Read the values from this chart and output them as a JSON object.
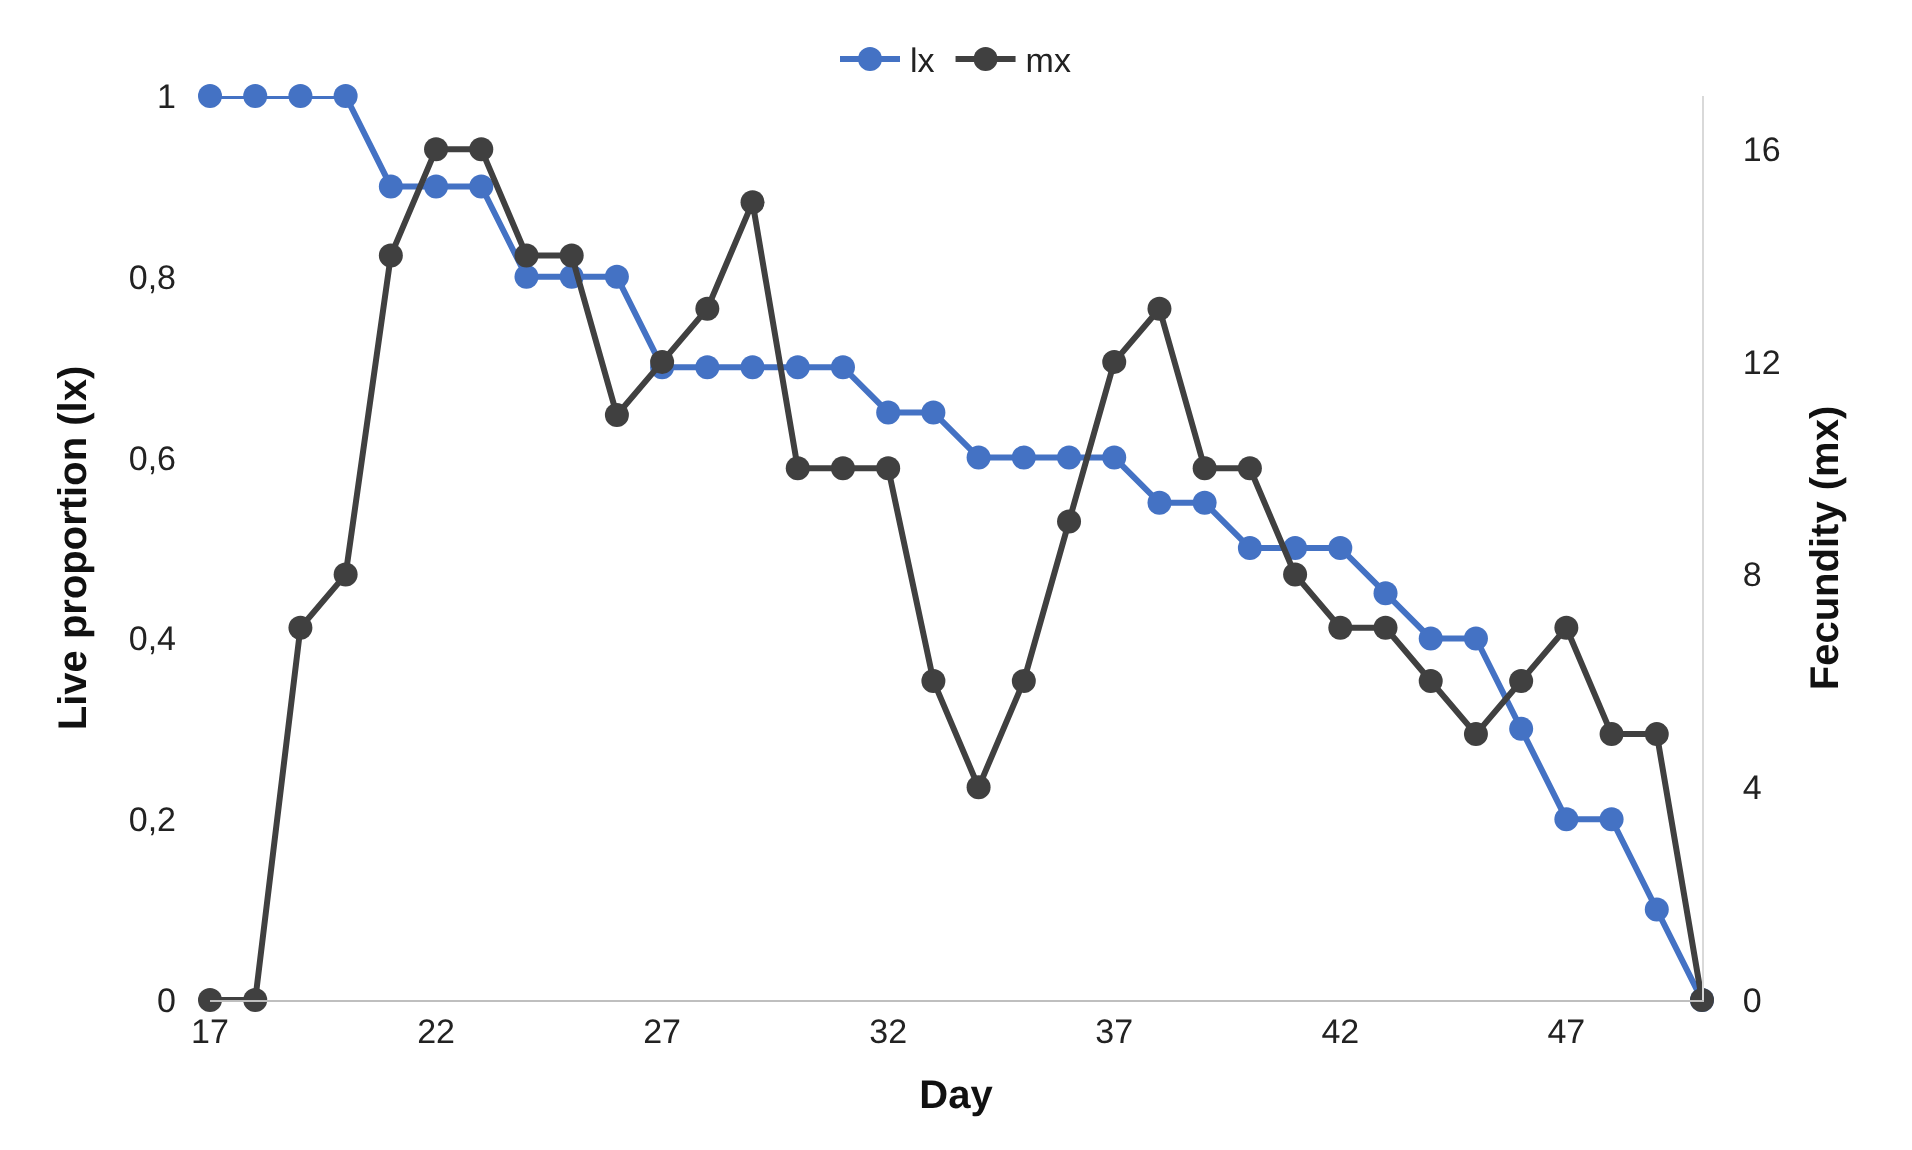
{
  "chart_data": {
    "type": "line",
    "xlabel": "Day",
    "ylabel": "Live proportion (lx)",
    "y2label": "Fecundity (mx)",
    "x": [
      17,
      18,
      19,
      20,
      21,
      22,
      23,
      24,
      25,
      26,
      27,
      28,
      29,
      30,
      31,
      32,
      33,
      34,
      35,
      36,
      37,
      38,
      39,
      40,
      41,
      42,
      43,
      44,
      45,
      46,
      47,
      48,
      49,
      50
    ],
    "series": [
      {
        "name": "lx",
        "color": "#4472c4",
        "values": [
          1,
          1,
          1,
          1,
          0.9,
          0.9,
          0.9,
          0.8,
          0.8,
          0.8,
          0.7,
          0.7,
          0.7,
          0.7,
          0.7,
          0.65,
          0.65,
          0.6,
          0.6,
          0.6,
          0.6,
          0.55,
          0.55,
          0.5,
          0.5,
          0.5,
          0.45,
          0.4,
          0.4,
          0.3,
          0.2,
          0.2,
          0.1,
          0
        ]
      },
      {
        "name": "mx",
        "color": "#404040",
        "axis": "y2",
        "values": [
          0,
          0,
          7,
          8,
          14,
          16,
          16,
          14,
          14,
          11,
          12,
          13,
          15,
          10,
          10,
          10,
          6,
          4,
          6,
          9,
          12,
          13,
          10,
          10,
          8,
          7,
          7,
          6,
          5,
          6,
          7,
          5,
          5,
          0
        ]
      }
    ],
    "xlim": [
      17,
      50
    ],
    "xticks": [
      17,
      22,
      27,
      32,
      37,
      42,
      47
    ],
    "ylim": [
      0,
      1
    ],
    "yticks": [
      0,
      {
        "value": 0.2,
        "label": "0,2"
      },
      {
        "value": 0.4,
        "label": "0,4"
      },
      {
        "value": 0.6,
        "label": "0,6"
      },
      {
        "value": 0.8,
        "label": "0,8"
      },
      1
    ],
    "y2lim": [
      0,
      17
    ],
    "y2ticks": [
      0,
      4,
      8,
      12,
      16
    ],
    "legend": "top",
    "marker": "circle",
    "line_style": "solid"
  }
}
